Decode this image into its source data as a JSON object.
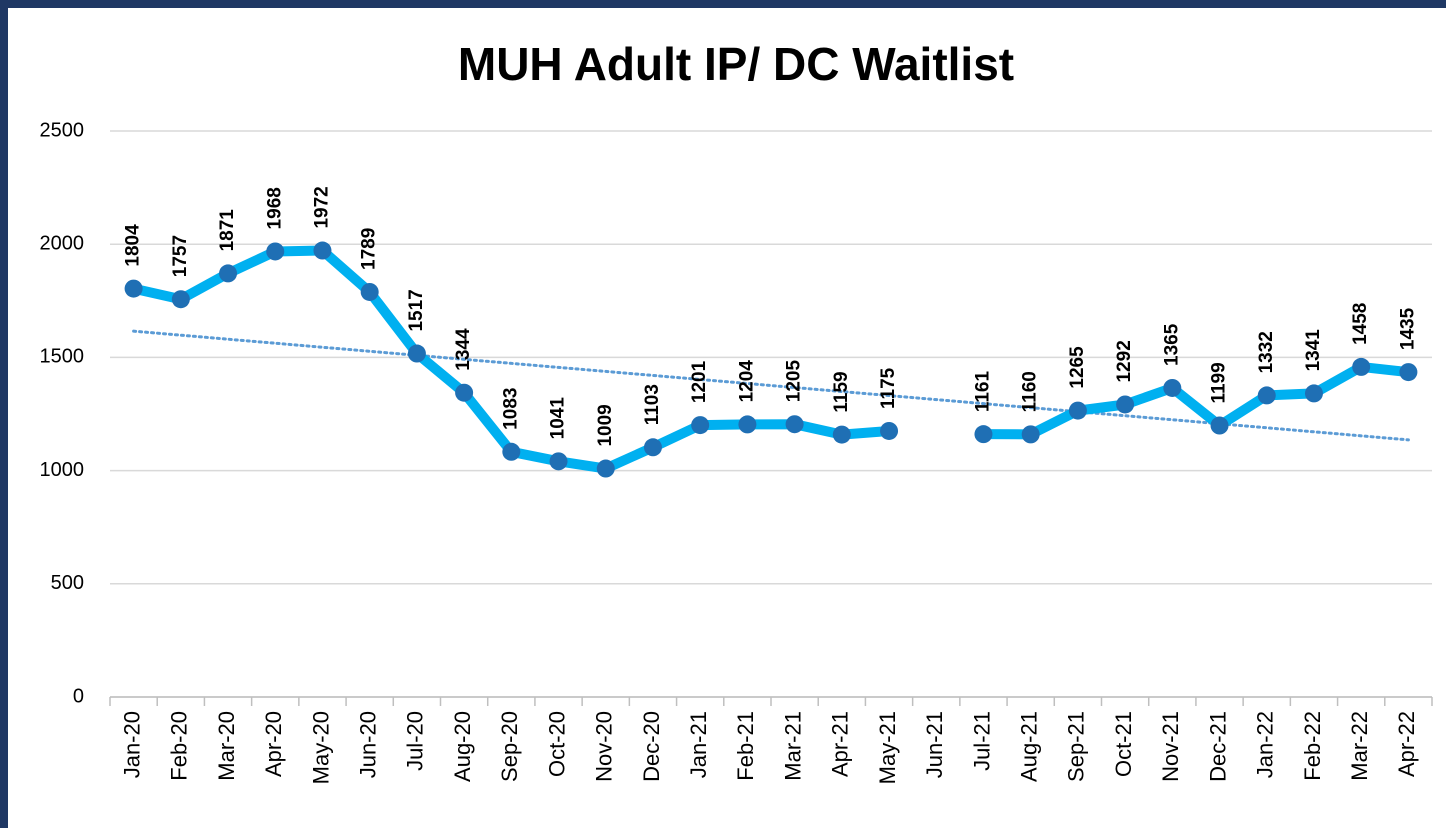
{
  "chart_data": {
    "type": "line",
    "title": "MUH Adult IP/ DC Waitlist",
    "categories": [
      "Jan-20",
      "Feb-20",
      "Mar-20",
      "Apr-20",
      "May-20",
      "Jun-20",
      "Jul-20",
      "Aug-20",
      "Sep-20",
      "Oct-20",
      "Nov-20",
      "Dec-20",
      "Jan-21",
      "Feb-21",
      "Mar-21",
      "Apr-21",
      "May-21",
      "Jun-21",
      "Jul-21",
      "Aug-21",
      "Sep-21",
      "Oct-21",
      "Nov-21",
      "Dec-21",
      "Jan-22",
      "Feb-22",
      "Mar-22",
      "Apr-22"
    ],
    "values": [
      1804,
      1757,
      1871,
      1968,
      1972,
      1789,
      1517,
      1344,
      1083,
      1041,
      1009,
      1103,
      1201,
      1204,
      1205,
      1159,
      1175,
      null,
      1161,
      1160,
      1265,
      1292,
      1365,
      1199,
      1332,
      1341,
      1458,
      1435
    ],
    "color": "#00b0f0",
    "marker_color": "#1f6fb4",
    "trendline": true,
    "trendline_color": "#5b9bd5",
    "ylim": [
      0,
      2500
    ],
    "yticks": [
      0,
      500,
      1000,
      1500,
      2000,
      2500
    ],
    "grid": true,
    "data_labels": true
  }
}
